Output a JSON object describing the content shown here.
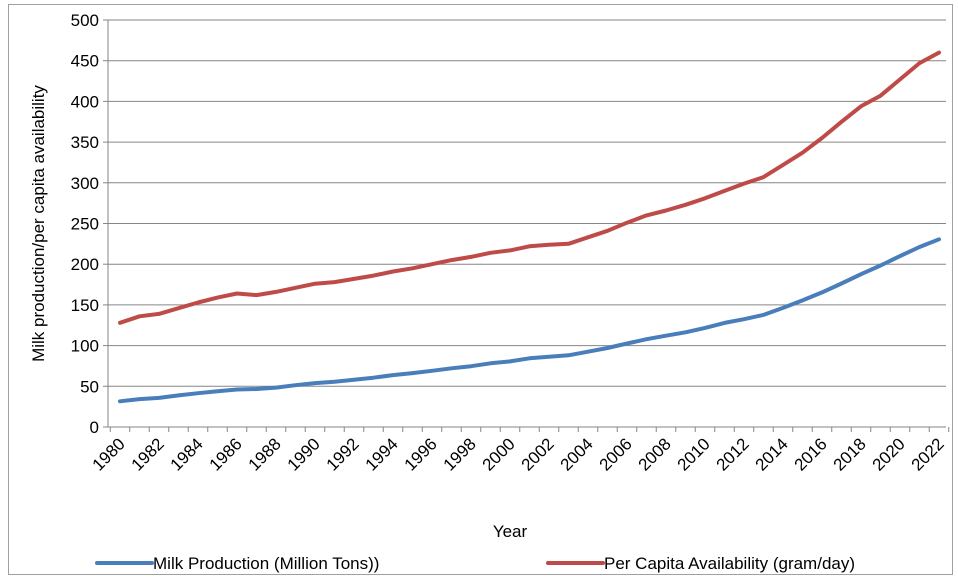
{
  "chart_data": {
    "type": "line",
    "title": "",
    "xlabel": "Year",
    "ylabel": "Milk production/per capita availability",
    "ylim": [
      0,
      500
    ],
    "yticks": [
      0,
      50,
      100,
      150,
      200,
      250,
      300,
      350,
      400,
      450,
      500
    ],
    "grid": true,
    "legend_position": "bottom",
    "x": [
      1980,
      1981,
      1982,
      1983,
      1984,
      1985,
      1986,
      1987,
      1988,
      1989,
      1990,
      1991,
      1992,
      1993,
      1994,
      1995,
      1996,
      1997,
      1998,
      1999,
      2000,
      2001,
      2002,
      2003,
      2004,
      2005,
      2006,
      2007,
      2008,
      2009,
      2010,
      2011,
      2012,
      2013,
      2014,
      2015,
      2016,
      2017,
      2018,
      2019,
      2020,
      2021,
      2022
    ],
    "xtick_labels": [
      "1980",
      "1982",
      "1984",
      "1986",
      "1988",
      "1990",
      "1992",
      "1994",
      "1996",
      "1998",
      "2000",
      "2002",
      "2004",
      "2006",
      "2008",
      "2010",
      "2012",
      "2014",
      "2016",
      "2018",
      "2020",
      "2022"
    ],
    "series": [
      {
        "name": "Milk Production (Million Tons))",
        "color": "#4a7ebb",
        "values": [
          31.6,
          34.3,
          35.8,
          38.8,
          41.5,
          44.0,
          46.1,
          46.7,
          48.4,
          51.4,
          53.9,
          55.6,
          58.0,
          60.6,
          63.8,
          66.2,
          69.1,
          72.1,
          74.7,
          78.3,
          80.6,
          84.4,
          86.2,
          88.1,
          92.5,
          97.1,
          102.6,
          107.9,
          112.2,
          116.4,
          121.8,
          127.9,
          132.4,
          137.7,
          146.3,
          155.5,
          165.4,
          176.3,
          187.7,
          198.4,
          209.9,
          221.1,
          230.6
        ]
      },
      {
        "name": "Per Capita Availability (gram/day)",
        "color": "#be4b48",
        "values": [
          128,
          136,
          139,
          146,
          153,
          159,
          164,
          162,
          166,
          171,
          176,
          178,
          182,
          186,
          191,
          195,
          200,
          205,
          209,
          214,
          217,
          222,
          224,
          225,
          233,
          241,
          251,
          260,
          266,
          273,
          281,
          290,
          299,
          307,
          322,
          337,
          355,
          375,
          394,
          407,
          427,
          447,
          460
        ]
      }
    ]
  }
}
